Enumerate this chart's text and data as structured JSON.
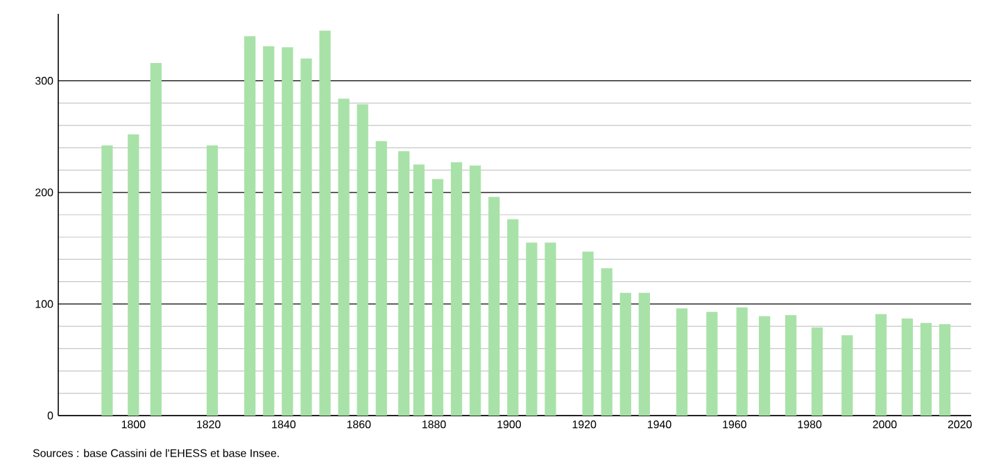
{
  "chart_data": {
    "type": "bar",
    "color": "#a8e2a8",
    "x": [
      1793,
      1800,
      1806,
      1821,
      1831,
      1836,
      1841,
      1846,
      1851,
      1856,
      1861,
      1866,
      1872,
      1876,
      1881,
      1886,
      1891,
      1896,
      1901,
      1906,
      1911,
      1921,
      1926,
      1931,
      1936,
      1946,
      1954,
      1962,
      1968,
      1975,
      1982,
      1990,
      1999,
      2006,
      2011,
      2016
    ],
    "values": [
      242,
      252,
      316,
      242,
      340,
      331,
      330,
      320,
      345,
      284,
      279,
      246,
      237,
      225,
      212,
      227,
      224,
      196,
      176,
      155,
      155,
      147,
      132,
      110,
      110,
      96,
      93,
      97,
      89,
      90,
      79,
      72,
      91,
      87,
      83,
      82
    ],
    "xlim": [
      1780,
      2023
    ],
    "ylim": [
      0,
      360
    ],
    "xticks": [
      1800,
      1820,
      1840,
      1860,
      1880,
      1900,
      1920,
      1940,
      1960,
      1980,
      2000,
      2020
    ],
    "yticks": [
      0,
      100,
      200,
      300
    ],
    "grid": "y",
    "annotations": [
      "Sources : base Cassini de l'EHESS et base Insee."
    ]
  }
}
